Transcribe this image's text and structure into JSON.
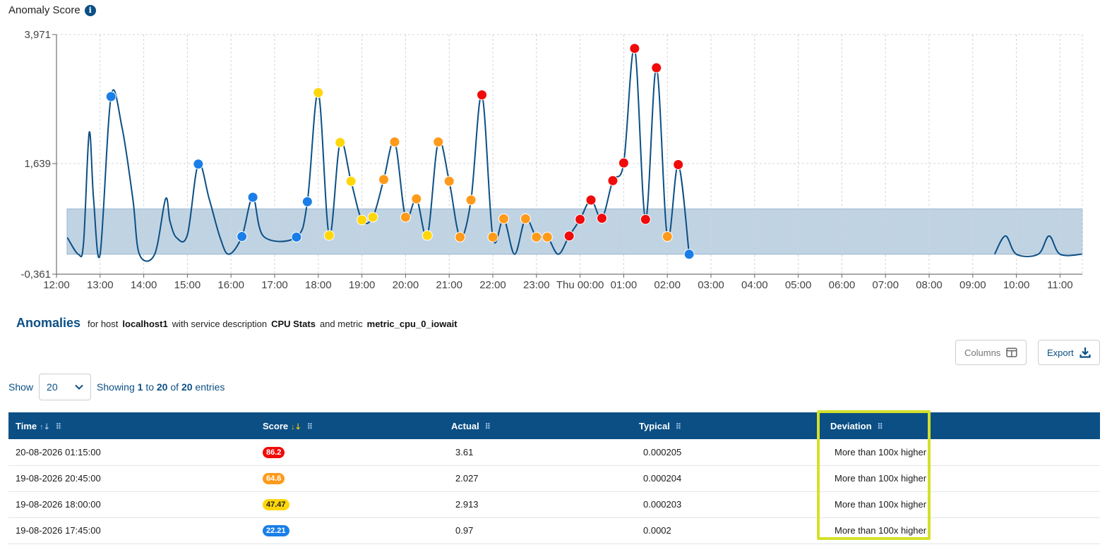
{
  "header": {
    "title": "Anomaly Score",
    "info_icon": "info-icon"
  },
  "chart_data": {
    "type": "line",
    "y_ticks": [
      "3,971",
      "1,639",
      "-0,361"
    ],
    "yticks_values": [
      3.971,
      1.639,
      -0.361
    ],
    "ylim": [
      -0.361,
      3.971
    ],
    "x_ticks": [
      "12:00",
      "13:00",
      "14:00",
      "15:00",
      "16:00",
      "17:00",
      "18:00",
      "19:00",
      "20:00",
      "21:00",
      "22:00",
      "23:00",
      "Thu 00:00",
      "01:00",
      "02:00",
      "03:00",
      "04:00",
      "05:00",
      "06:00",
      "07:00",
      "08:00",
      "09:00",
      "10:00",
      "11:00"
    ],
    "x_range_hours": [
      12,
      35.75
    ],
    "band": [
      0.0,
      0.82
    ],
    "grid": true,
    "colors": {
      "line": "#0b4f85",
      "band": "#c0d3e3",
      "blue": "#1a7ee8",
      "yellow": "#ffd60a",
      "orange": "#ff9a1a",
      "red": "#f00b0b"
    },
    "line": [
      [
        12.25,
        0.3
      ],
      [
        12.5,
        0.0
      ],
      [
        12.62,
        0.2
      ],
      [
        12.75,
        2.2
      ],
      [
        12.85,
        1.0
      ],
      [
        13.0,
        0.0
      ],
      [
        13.25,
        2.85
      ],
      [
        13.5,
        2.3
      ],
      [
        13.75,
        1.0
      ],
      [
        13.9,
        0.0
      ],
      [
        14.25,
        0.0
      ],
      [
        14.5,
        1.0
      ],
      [
        14.6,
        0.6
      ],
      [
        14.75,
        0.3
      ],
      [
        15.0,
        0.35
      ],
      [
        15.25,
        1.63
      ],
      [
        15.5,
        1.0
      ],
      [
        15.75,
        0.3
      ],
      [
        15.95,
        0.0
      ],
      [
        16.25,
        0.32
      ],
      [
        16.5,
        1.03
      ],
      [
        16.75,
        0.32
      ],
      [
        17.5,
        0.31
      ],
      [
        17.75,
        0.95
      ],
      [
        18.0,
        2.92
      ],
      [
        18.25,
        0.34
      ],
      [
        18.5,
        2.02
      ],
      [
        18.75,
        1.32
      ],
      [
        19.0,
        0.62
      ],
      [
        19.25,
        0.67
      ],
      [
        19.5,
        1.35
      ],
      [
        19.75,
        2.03
      ],
      [
        20.0,
        0.67
      ],
      [
        20.25,
        1.0
      ],
      [
        20.5,
        0.34
      ],
      [
        20.75,
        2.03
      ],
      [
        21.0,
        1.32
      ],
      [
        21.25,
        0.31
      ],
      [
        21.5,
        0.98
      ],
      [
        21.75,
        2.88
      ],
      [
        22.0,
        0.31
      ],
      [
        22.25,
        0.64
      ],
      [
        22.5,
        0.0
      ],
      [
        22.75,
        0.64
      ],
      [
        23.0,
        0.31
      ],
      [
        23.25,
        0.31
      ],
      [
        23.5,
        0.0
      ],
      [
        23.75,
        0.33
      ],
      [
        24.0,
        0.63
      ],
      [
        24.25,
        0.98
      ],
      [
        24.5,
        0.65
      ],
      [
        24.75,
        1.33
      ],
      [
        25.0,
        1.65
      ],
      [
        25.25,
        3.72
      ],
      [
        25.5,
        0.63
      ],
      [
        25.75,
        3.37
      ],
      [
        26.0,
        0.32
      ],
      [
        26.25,
        1.62
      ],
      [
        26.5,
        0.0
      ],
      [
        33.5,
        0.0
      ],
      [
        33.75,
        0.33
      ],
      [
        34.0,
        0.0
      ],
      [
        34.5,
        0.0
      ],
      [
        34.75,
        0.33
      ],
      [
        35.0,
        0.0
      ],
      [
        35.5,
        0.0
      ]
    ],
    "anomaly_points": [
      {
        "t": 13.25,
        "v": 2.85,
        "c": "blue"
      },
      {
        "t": 15.25,
        "v": 1.63,
        "c": "blue"
      },
      {
        "t": 16.25,
        "v": 0.32,
        "c": "blue"
      },
      {
        "t": 16.5,
        "v": 1.03,
        "c": "blue"
      },
      {
        "t": 17.5,
        "v": 0.31,
        "c": "blue"
      },
      {
        "t": 17.75,
        "v": 0.95,
        "c": "blue"
      },
      {
        "t": 18.0,
        "v": 2.92,
        "c": "yellow"
      },
      {
        "t": 18.25,
        "v": 0.34,
        "c": "yellow"
      },
      {
        "t": 18.5,
        "v": 2.02,
        "c": "yellow"
      },
      {
        "t": 18.75,
        "v": 1.32,
        "c": "yellow"
      },
      {
        "t": 19.0,
        "v": 0.62,
        "c": "yellow"
      },
      {
        "t": 19.25,
        "v": 0.67,
        "c": "yellow"
      },
      {
        "t": 19.5,
        "v": 1.35,
        "c": "orange"
      },
      {
        "t": 19.75,
        "v": 2.03,
        "c": "orange"
      },
      {
        "t": 20.0,
        "v": 0.67,
        "c": "orange"
      },
      {
        "t": 20.25,
        "v": 1.0,
        "c": "orange"
      },
      {
        "t": 20.5,
        "v": 0.34,
        "c": "yellow"
      },
      {
        "t": 20.75,
        "v": 2.03,
        "c": "orange"
      },
      {
        "t": 21.0,
        "v": 1.32,
        "c": "orange"
      },
      {
        "t": 21.25,
        "v": 0.31,
        "c": "orange"
      },
      {
        "t": 21.5,
        "v": 0.98,
        "c": "orange"
      },
      {
        "t": 21.75,
        "v": 2.88,
        "c": "red"
      },
      {
        "t": 22.0,
        "v": 0.31,
        "c": "orange"
      },
      {
        "t": 22.25,
        "v": 0.64,
        "c": "orange"
      },
      {
        "t": 22.75,
        "v": 0.64,
        "c": "orange"
      },
      {
        "t": 23.0,
        "v": 0.31,
        "c": "orange"
      },
      {
        "t": 23.25,
        "v": 0.31,
        "c": "orange"
      },
      {
        "t": 23.75,
        "v": 0.33,
        "c": "red"
      },
      {
        "t": 24.0,
        "v": 0.63,
        "c": "red"
      },
      {
        "t": 24.25,
        "v": 0.98,
        "c": "red"
      },
      {
        "t": 24.5,
        "v": 0.65,
        "c": "red"
      },
      {
        "t": 24.75,
        "v": 1.33,
        "c": "red"
      },
      {
        "t": 25.0,
        "v": 1.65,
        "c": "red"
      },
      {
        "t": 25.25,
        "v": 3.72,
        "c": "red"
      },
      {
        "t": 25.5,
        "v": 0.63,
        "c": "red"
      },
      {
        "t": 25.75,
        "v": 3.37,
        "c": "red"
      },
      {
        "t": 26.0,
        "v": 0.32,
        "c": "orange"
      },
      {
        "t": 26.25,
        "v": 1.62,
        "c": "red"
      },
      {
        "t": 26.5,
        "v": 0.0,
        "c": "blue"
      }
    ]
  },
  "anomalies": {
    "title": "Anomalies",
    "for_host": "for host",
    "host": "localhost1",
    "with_service": "with service description",
    "service": "CPU Stats",
    "and_metric": "and metric",
    "metric": "metric_cpu_0_iowait"
  },
  "toolbar": {
    "columns_label": "Columns",
    "export_label": "Export"
  },
  "paging": {
    "show_label": "Show",
    "page_size": "20",
    "showing_prefix": "Showing",
    "from": "1",
    "to_word": "to",
    "to": "20",
    "of_word": "of",
    "total": "20",
    "entries_word": "entries"
  },
  "table": {
    "headers": [
      "Time",
      "Score",
      "Actual",
      "Typical",
      "Deviation"
    ],
    "rows": [
      {
        "time": "20-08-2026 01:15:00",
        "score": "86.2",
        "score_color": "#f00b0b",
        "score_text": "#ffffff",
        "actual": "3.61",
        "typical": "0.000205",
        "deviation": "More than 100x higher"
      },
      {
        "time": "19-08-2026 20:45:00",
        "score": "64.6",
        "score_color": "#ff9a1a",
        "score_text": "#ffffff",
        "actual": "2.027",
        "typical": "0.000204",
        "deviation": "More than 100x higher"
      },
      {
        "time": "19-08-2026 18:00:00",
        "score": "47.47",
        "score_color": "#ffd60a",
        "score_text": "#222222",
        "actual": "2.913",
        "typical": "0.000203",
        "deviation": "More than 100x higher"
      },
      {
        "time": "19-08-2026 17:45:00",
        "score": "22.21",
        "score_color": "#1a7ee8",
        "score_text": "#ffffff",
        "actual": "0.97",
        "typical": "0.0002",
        "deviation": "More than 100x higher"
      }
    ]
  }
}
